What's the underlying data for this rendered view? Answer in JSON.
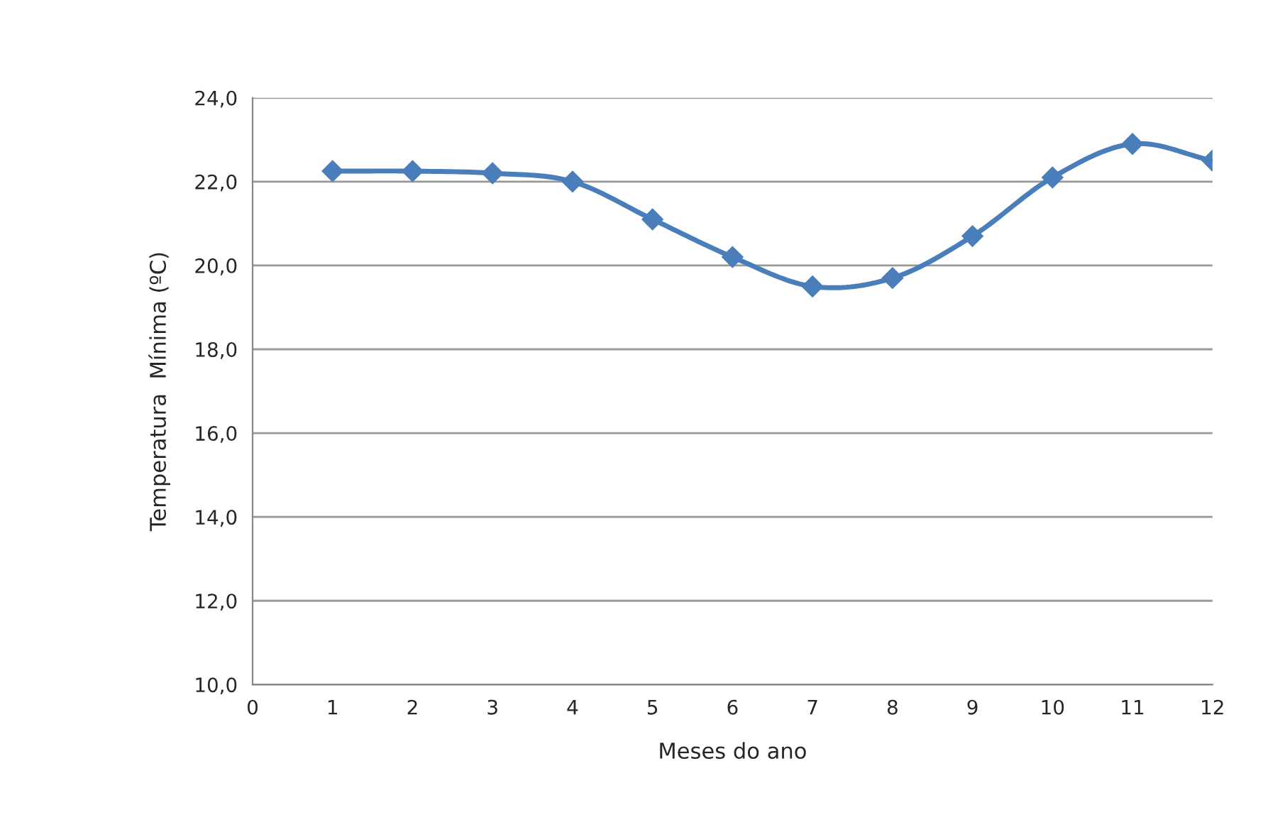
{
  "chart_data": {
    "type": "line",
    "xlabel": "Meses do ano",
    "ylabel": "Temperatura  Mínima (ºC)",
    "x": [
      1,
      2,
      3,
      4,
      5,
      6,
      7,
      8,
      9,
      10,
      11,
      12
    ],
    "series": [
      {
        "color": "#4a7ebb",
        "values": [
          22.25,
          22.25,
          22.2,
          22.0,
          21.1,
          20.2,
          19.5,
          19.7,
          20.7,
          22.1,
          22.9,
          22.5
        ]
      }
    ],
    "xlim": [
      0,
      12
    ],
    "xticks": [
      0,
      1,
      2,
      3,
      4,
      5,
      6,
      7,
      8,
      9,
      10,
      11,
      12
    ],
    "ylim": [
      10,
      24
    ],
    "yticks": [
      {
        "value": 10,
        "label": "10,0"
      },
      {
        "value": 12,
        "label": "12,0"
      },
      {
        "value": 14,
        "label": "14,0"
      },
      {
        "value": 16,
        "label": "16,0"
      },
      {
        "value": 18,
        "label": "18,0"
      },
      {
        "value": 20,
        "label": "20,0"
      },
      {
        "value": 22,
        "label": "22,0"
      },
      {
        "value": 24,
        "label": "24,0"
      }
    ],
    "grid": "y",
    "marker": "diamond",
    "line_style": "solid",
    "legend": false
  }
}
